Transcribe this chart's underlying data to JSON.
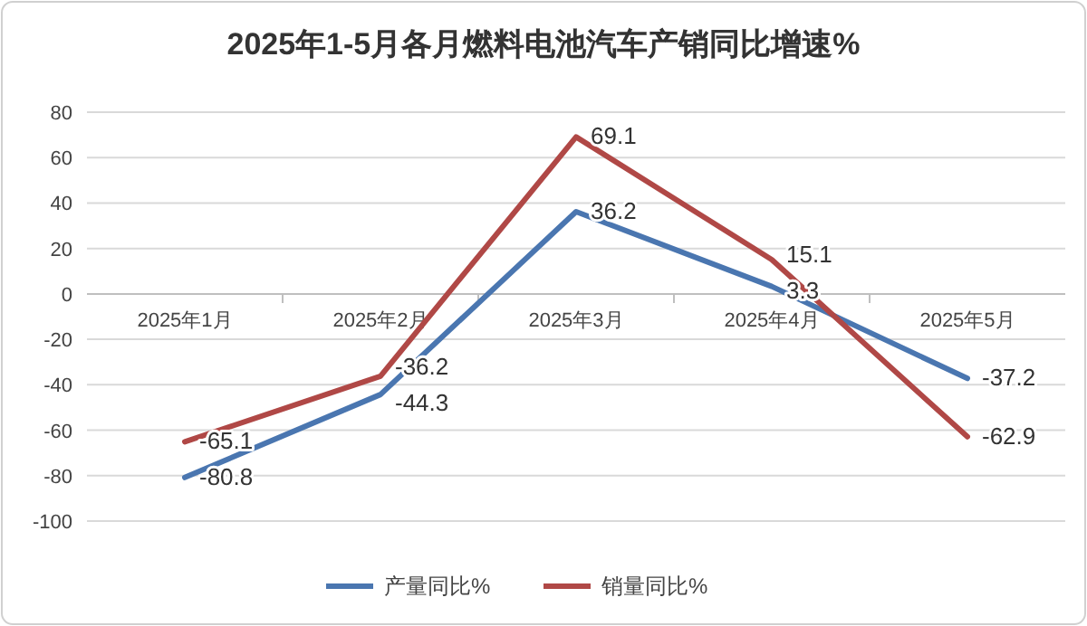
{
  "chart_data": {
    "type": "line",
    "title": "2025年1-5月各月燃料电池汽车产销同比增速%",
    "categories": [
      "2025年1月",
      "2025年2月",
      "2025年3月",
      "2025年4月",
      "2025年5月"
    ],
    "series": [
      {
        "name": "产量同比%",
        "color": "#4a76b0",
        "values": [
          -80.8,
          -44.3,
          36.2,
          3.3,
          -37.2
        ]
      },
      {
        "name": "销量同比%",
        "color": "#b04846",
        "values": [
          -65.1,
          -36.2,
          69.1,
          15.1,
          -62.9
        ]
      }
    ],
    "ylim": [
      -100,
      80
    ],
    "yticks": [
      -100,
      -80,
      -60,
      -40,
      -20,
      0,
      20,
      40,
      60,
      80
    ],
    "grid": "y",
    "legend": "bottom",
    "data_labels": true,
    "marker": "none",
    "line_style": "solid"
  }
}
